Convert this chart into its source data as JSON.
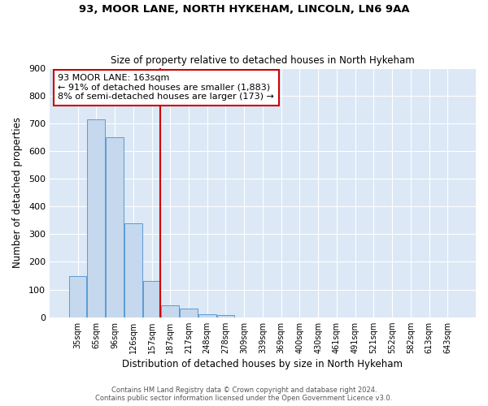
{
  "title1": "93, MOOR LANE, NORTH HYKEHAM, LINCOLN, LN6 9AA",
  "title2": "Size of property relative to detached houses in North Hykeham",
  "xlabel": "Distribution of detached houses by size in North Hykeham",
  "ylabel": "Number of detached properties",
  "footer1": "Contains HM Land Registry data © Crown copyright and database right 2024.",
  "footer2": "Contains public sector information licensed under the Open Government Licence v3.0.",
  "categories": [
    "35sqm",
    "65sqm",
    "96sqm",
    "126sqm",
    "157sqm",
    "187sqm",
    "217sqm",
    "248sqm",
    "278sqm",
    "309sqm",
    "339sqm",
    "369sqm",
    "400sqm",
    "430sqm",
    "461sqm",
    "491sqm",
    "521sqm",
    "552sqm",
    "582sqm",
    "613sqm",
    "643sqm"
  ],
  "values": [
    150,
    715,
    650,
    340,
    130,
    42,
    30,
    12,
    8,
    0,
    0,
    0,
    0,
    0,
    0,
    0,
    0,
    0,
    0,
    0,
    0
  ],
  "bar_color": "#c5d8ed",
  "bar_edge_color": "#5b9bd5",
  "plot_bg_color": "#dce8f5",
  "fig_bg_color": "#ffffff",
  "grid_color": "#ffffff",
  "annotation_line1": "93 MOOR LANE: 163sqm",
  "annotation_line2": "← 91% of detached houses are smaller (1,883)",
  "annotation_line3": "8% of semi-detached houses are larger (173) →",
  "annotation_box_color": "#ffffff",
  "annotation_border_color": "#cc0000",
  "vline_color": "#cc0000",
  "vline_x": 4.48,
  "ylim": [
    0,
    900
  ],
  "yticks": [
    0,
    100,
    200,
    300,
    400,
    500,
    600,
    700,
    800,
    900
  ]
}
